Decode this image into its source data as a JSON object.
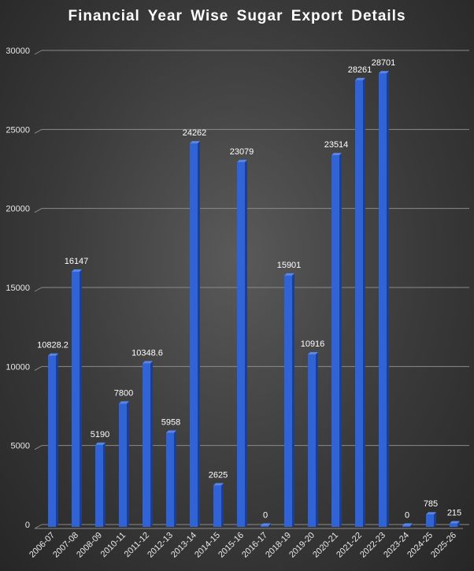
{
  "chart_data": {
    "type": "bar",
    "title": "Financial Year Wise Sugar Export Details",
    "xlabel": "",
    "ylabel": "",
    "categories": [
      "2006-07",
      "2007-08",
      "2008-09",
      "2010-11",
      "2011-12",
      "2012-13",
      "2013-14",
      "2014-15",
      "2015-16",
      "2016-17",
      "2018-19",
      "2019-20",
      "2020-21",
      "2021-22",
      "2022-23",
      "2023-24",
      "2024-25",
      "2025-26"
    ],
    "values": [
      10828.2,
      16147,
      5190,
      7800,
      10348.6,
      5958,
      24262,
      2625,
      23079,
      0,
      15901,
      10916,
      23514,
      28261,
      28701,
      0,
      785,
      215
    ],
    "value_labels": [
      "10828.2",
      "16147",
      "5190",
      "7800",
      "10348.6",
      "5958",
      "24262",
      "2625",
      "23079",
      "0",
      "15901",
      "10916",
      "23514",
      "28261",
      "28701",
      "0",
      "785",
      "215"
    ],
    "ylim": [
      0,
      30000
    ],
    "yticks": [
      0,
      5000,
      10000,
      15000,
      20000,
      25000,
      30000
    ],
    "grid": true,
    "legend": "none",
    "colors": {
      "bar": "#2f63d6",
      "bar_side": "#1c3f93",
      "bar_top": "#5a86ea",
      "grid": "#8a8a8a",
      "text": "#ffffff",
      "tick_text": "#e8e8e8"
    }
  }
}
